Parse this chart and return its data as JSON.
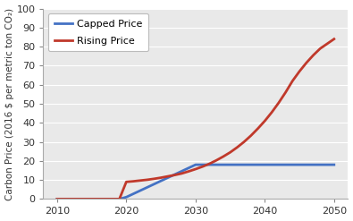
{
  "capped_x": [
    2010,
    2018,
    2019,
    2020,
    2025,
    2030,
    2035,
    2040,
    2045,
    2050
  ],
  "capped_y": [
    0,
    0,
    0,
    1,
    9.5,
    18,
    18,
    18,
    18,
    18
  ],
  "rising_x": [
    2010,
    2018,
    2019,
    2020,
    2021,
    2022,
    2023,
    2024,
    2025,
    2026,
    2027,
    2028,
    2029,
    2030,
    2031,
    2032,
    2033,
    2034,
    2035,
    2036,
    2037,
    2038,
    2039,
    2040,
    2041,
    2042,
    2043,
    2044,
    2045,
    2046,
    2047,
    2048,
    2049,
    2050
  ],
  "rising_y": [
    0,
    0,
    0,
    9,
    9.3,
    9.7,
    10.1,
    10.6,
    11.2,
    11.9,
    12.6,
    13.4,
    14.5,
    15.7,
    17.0,
    18.5,
    20.3,
    22.3,
    24.5,
    27.1,
    30.0,
    33.3,
    37.0,
    41.0,
    45.5,
    50.5,
    56.0,
    62.0,
    67.0,
    71.5,
    75.5,
    79.0,
    81.5,
    84
  ],
  "capped_color": "#4472C4",
  "rising_color": "#C0392B",
  "capped_label": "Capped Price",
  "rising_label": "Rising Price",
  "ylabel": "Carbon Price (2016 $ per metric ton CO₂)",
  "xlim": [
    2008,
    2052
  ],
  "ylim": [
    0,
    100
  ],
  "xticks": [
    2010,
    2020,
    2030,
    2040,
    2050
  ],
  "yticks": [
    0,
    10,
    20,
    30,
    40,
    50,
    60,
    70,
    80,
    90,
    100
  ],
  "line_width": 2.0,
  "plot_bg": "#E9E9E9",
  "fig_bg": "#FFFFFF"
}
